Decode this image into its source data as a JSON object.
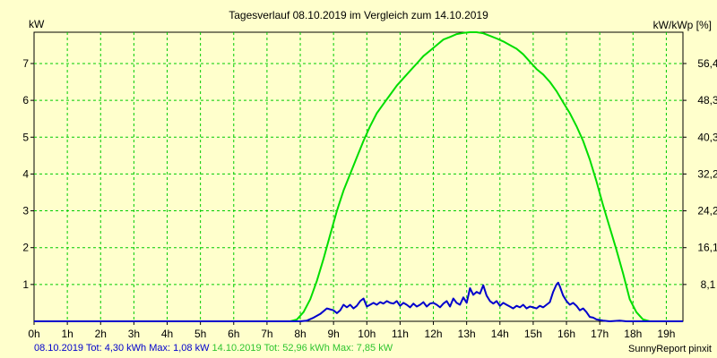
{
  "chart_data": {
    "type": "line",
    "title": "Tagesverlauf 08.10.2019 im Vergleich zum 14.10.2019",
    "ylabel_left": "kW",
    "ylabel_right": "kW/kWp [%]",
    "xlim": [
      0,
      19.5
    ],
    "ylim": [
      0,
      7.85
    ],
    "x_ticks": [
      {
        "label": "0h",
        "value": 0
      },
      {
        "label": "1h",
        "value": 1
      },
      {
        "label": "2h",
        "value": 2
      },
      {
        "label": "3h",
        "value": 3
      },
      {
        "label": "4h",
        "value": 4
      },
      {
        "label": "5h",
        "value": 5
      },
      {
        "label": "6h",
        "value": 6
      },
      {
        "label": "7h",
        "value": 7
      },
      {
        "label": "8h",
        "value": 8
      },
      {
        "label": "9h",
        "value": 9
      },
      {
        "label": "10h",
        "value": 10
      },
      {
        "label": "11h",
        "value": 11
      },
      {
        "label": "12h",
        "value": 12
      },
      {
        "label": "13h",
        "value": 13
      },
      {
        "label": "14h",
        "value": 14
      },
      {
        "label": "15h",
        "value": 15
      },
      {
        "label": "16h",
        "value": 16
      },
      {
        "label": "17h",
        "value": 17
      },
      {
        "label": "18h",
        "value": 18
      },
      {
        "label": "19h",
        "value": 19
      }
    ],
    "y_ticks_left": [
      {
        "label": "1",
        "value": 1
      },
      {
        "label": "2",
        "value": 2
      },
      {
        "label": "3",
        "value": 3
      },
      {
        "label": "4",
        "value": 4
      },
      {
        "label": "5",
        "value": 5
      },
      {
        "label": "6",
        "value": 6
      },
      {
        "label": "7",
        "value": 7
      }
    ],
    "y_ticks_right": [
      {
        "label": "8,1",
        "value": 1
      },
      {
        "label": "16,1",
        "value": 2
      },
      {
        "label": "24,2",
        "value": 3
      },
      {
        "label": "32,2",
        "value": 4
      },
      {
        "label": "40,3",
        "value": 5
      },
      {
        "label": "48,3",
        "value": 6
      },
      {
        "label": "56,4",
        "value": 7
      }
    ],
    "grid": true,
    "series": [
      {
        "date": "14.10.2019",
        "color": "#00dd00",
        "points": [
          [
            0,
            0
          ],
          [
            7.7,
            0
          ],
          [
            7.9,
            0.05
          ],
          [
            8.1,
            0.25
          ],
          [
            8.3,
            0.6
          ],
          [
            8.5,
            1.1
          ],
          [
            8.7,
            1.7
          ],
          [
            8.9,
            2.35
          ],
          [
            9.1,
            3.0
          ],
          [
            9.3,
            3.55
          ],
          [
            9.5,
            4.0
          ],
          [
            9.7,
            4.45
          ],
          [
            9.9,
            4.9
          ],
          [
            10.1,
            5.3
          ],
          [
            10.3,
            5.65
          ],
          [
            10.5,
            5.9
          ],
          [
            10.7,
            6.15
          ],
          [
            10.9,
            6.4
          ],
          [
            11.1,
            6.6
          ],
          [
            11.3,
            6.8
          ],
          [
            11.5,
            7.0
          ],
          [
            11.7,
            7.2
          ],
          [
            11.9,
            7.35
          ],
          [
            12.1,
            7.5
          ],
          [
            12.3,
            7.65
          ],
          [
            12.5,
            7.72
          ],
          [
            12.7,
            7.8
          ],
          [
            12.9,
            7.83
          ],
          [
            13.1,
            7.85
          ],
          [
            13.3,
            7.85
          ],
          [
            13.5,
            7.82
          ],
          [
            13.7,
            7.75
          ],
          [
            13.9,
            7.68
          ],
          [
            14.1,
            7.6
          ],
          [
            14.3,
            7.5
          ],
          [
            14.5,
            7.4
          ],
          [
            14.7,
            7.25
          ],
          [
            14.9,
            7.05
          ],
          [
            15.1,
            6.85
          ],
          [
            15.3,
            6.7
          ],
          [
            15.5,
            6.5
          ],
          [
            15.7,
            6.25
          ],
          [
            15.9,
            5.95
          ],
          [
            16.1,
            5.65
          ],
          [
            16.3,
            5.3
          ],
          [
            16.5,
            4.9
          ],
          [
            16.7,
            4.4
          ],
          [
            16.9,
            3.8
          ],
          [
            17.1,
            3.15
          ],
          [
            17.3,
            2.55
          ],
          [
            17.5,
            1.95
          ],
          [
            17.7,
            1.3
          ],
          [
            17.9,
            0.6
          ],
          [
            18.1,
            0.25
          ],
          [
            18.3,
            0.05
          ],
          [
            18.5,
            0
          ],
          [
            19.5,
            0
          ]
        ]
      },
      {
        "date": "08.10.2019",
        "color": "#0000cc",
        "points": [
          [
            0,
            0
          ],
          [
            8.0,
            0
          ],
          [
            8.2,
            0.02
          ],
          [
            8.4,
            0.1
          ],
          [
            8.6,
            0.2
          ],
          [
            8.8,
            0.35
          ],
          [
            9.0,
            0.3
          ],
          [
            9.1,
            0.22
          ],
          [
            9.2,
            0.3
          ],
          [
            9.3,
            0.45
          ],
          [
            9.4,
            0.38
          ],
          [
            9.5,
            0.45
          ],
          [
            9.6,
            0.35
          ],
          [
            9.7,
            0.42
          ],
          [
            9.8,
            0.55
          ],
          [
            9.9,
            0.62
          ],
          [
            10.0,
            0.4
          ],
          [
            10.1,
            0.45
          ],
          [
            10.2,
            0.5
          ],
          [
            10.3,
            0.45
          ],
          [
            10.4,
            0.52
          ],
          [
            10.5,
            0.48
          ],
          [
            10.6,
            0.55
          ],
          [
            10.7,
            0.5
          ],
          [
            10.8,
            0.48
          ],
          [
            10.9,
            0.55
          ],
          [
            11.0,
            0.42
          ],
          [
            11.1,
            0.5
          ],
          [
            11.2,
            0.45
          ],
          [
            11.3,
            0.38
          ],
          [
            11.4,
            0.48
          ],
          [
            11.5,
            0.4
          ],
          [
            11.6,
            0.45
          ],
          [
            11.7,
            0.52
          ],
          [
            11.8,
            0.4
          ],
          [
            11.9,
            0.48
          ],
          [
            12.0,
            0.5
          ],
          [
            12.1,
            0.45
          ],
          [
            12.2,
            0.38
          ],
          [
            12.3,
            0.48
          ],
          [
            12.4,
            0.55
          ],
          [
            12.5,
            0.4
          ],
          [
            12.6,
            0.62
          ],
          [
            12.7,
            0.5
          ],
          [
            12.8,
            0.45
          ],
          [
            12.9,
            0.65
          ],
          [
            13.0,
            0.5
          ],
          [
            13.1,
            0.9
          ],
          [
            13.2,
            0.72
          ],
          [
            13.3,
            0.8
          ],
          [
            13.4,
            0.75
          ],
          [
            13.5,
            0.98
          ],
          [
            13.6,
            0.7
          ],
          [
            13.7,
            0.55
          ],
          [
            13.8,
            0.48
          ],
          [
            13.9,
            0.55
          ],
          [
            14.0,
            0.42
          ],
          [
            14.1,
            0.5
          ],
          [
            14.2,
            0.45
          ],
          [
            14.3,
            0.4
          ],
          [
            14.4,
            0.35
          ],
          [
            14.5,
            0.42
          ],
          [
            14.6,
            0.38
          ],
          [
            14.7,
            0.45
          ],
          [
            14.8,
            0.35
          ],
          [
            14.9,
            0.4
          ],
          [
            15.0,
            0.38
          ],
          [
            15.1,
            0.35
          ],
          [
            15.2,
            0.42
          ],
          [
            15.3,
            0.38
          ],
          [
            15.4,
            0.45
          ],
          [
            15.5,
            0.52
          ],
          [
            15.6,
            0.8
          ],
          [
            15.7,
            1.0
          ],
          [
            15.75,
            1.05
          ],
          [
            15.8,
            0.95
          ],
          [
            15.9,
            0.7
          ],
          [
            16.0,
            0.55
          ],
          [
            16.1,
            0.45
          ],
          [
            16.2,
            0.5
          ],
          [
            16.3,
            0.42
          ],
          [
            16.4,
            0.3
          ],
          [
            16.5,
            0.35
          ],
          [
            16.6,
            0.25
          ],
          [
            16.7,
            0.12
          ],
          [
            16.8,
            0.1
          ],
          [
            16.9,
            0.05
          ],
          [
            17.1,
            0.02
          ],
          [
            17.3,
            0.0
          ],
          [
            17.6,
            0.02
          ],
          [
            17.8,
            0.0
          ],
          [
            19.5,
            0
          ]
        ]
      }
    ],
    "footer": {
      "blue_text": "08.10.2019 Tot: 4,30 kWh Max: 1,08 kW",
      "green_text": "14.10.2019 Tot: 52,96 kWh Max: 7,85 kW"
    },
    "credit": "SunnyReport pinxit"
  }
}
